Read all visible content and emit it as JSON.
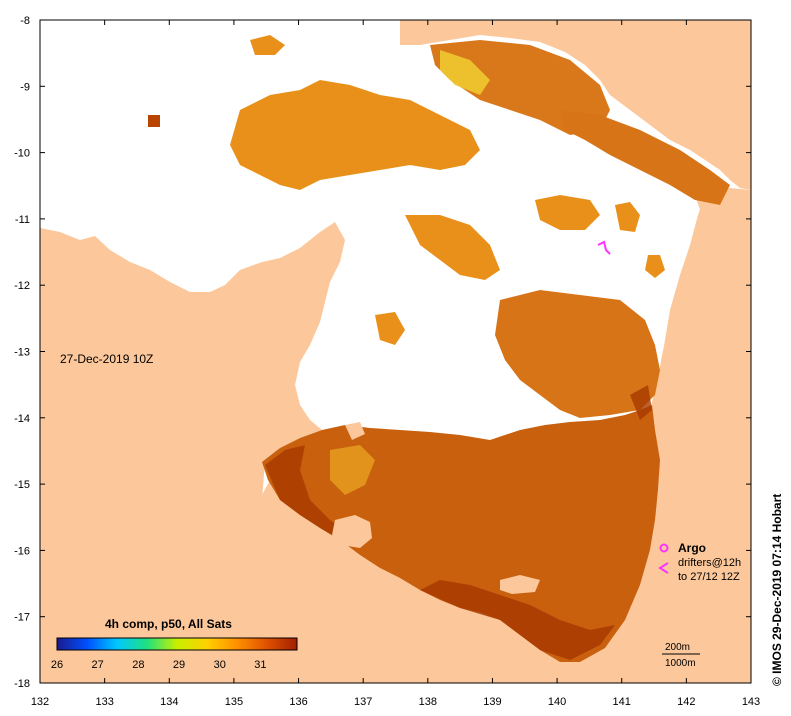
{
  "map": {
    "date_label": "27-Dec-2019 10Z",
    "credit": "© IMOS 29-Dec-2019 07:14 Hobart",
    "x_ticks": [
      "132",
      "133",
      "134",
      "135",
      "136",
      "137",
      "138",
      "139",
      "140",
      "141",
      "142",
      "143"
    ],
    "y_ticks": [
      "-8",
      "-9",
      "-10",
      "-11",
      "-12",
      "-13",
      "-14",
      "-15",
      "-16",
      "-17",
      "-18"
    ],
    "x_range": [
      132,
      143
    ],
    "y_range": [
      -18,
      -8
    ]
  },
  "colorbar": {
    "title": "4h comp, p50, All Sats",
    "ticks": [
      "26",
      "27",
      "28",
      "29",
      "30",
      "31"
    ],
    "range": [
      26,
      31.9
    ],
    "colors": [
      "#1a1a8c",
      "#0050ff",
      "#00c8ff",
      "#20e080",
      "#c8f000",
      "#ffd000",
      "#ff9000",
      "#e05000",
      "#a02000"
    ]
  },
  "legend": {
    "argo": "Argo",
    "drifters_line1": "drifters@12h",
    "drifters_line2": "to 27/12 12Z",
    "marker_color": "#ff33ff"
  },
  "scale": {
    "bar1": "200m",
    "bar2": "1000m"
  },
  "colors": {
    "land": "#fcc89b",
    "sea_no_data": "#ffffff",
    "sst_warm": "#d2690e",
    "sst_hot": "#b84400",
    "sst_mid": "#e8901a"
  }
}
